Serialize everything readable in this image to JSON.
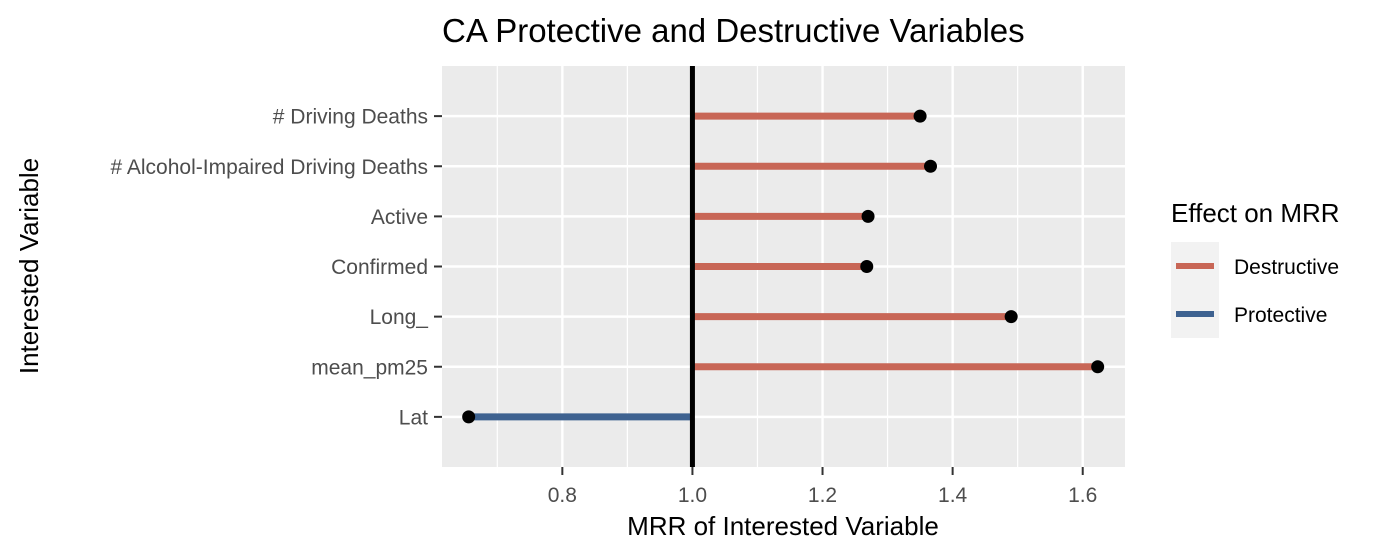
{
  "chart_data": {
    "type": "lollipop",
    "title": "CA Protective and Destructive Variables",
    "xlabel": "MRR of Interested Variable",
    "ylabel": "Interested Variable",
    "xlim": [
      0.615,
      1.665
    ],
    "x_ticks": [
      "0.8",
      "1.0",
      "1.2",
      "1.4",
      "1.6"
    ],
    "x_tick_values": [
      0.8,
      1.0,
      1.2,
      1.4,
      1.6
    ],
    "reference_line": 1.0,
    "grid": true,
    "legend_position": "right",
    "categories": [
      "# Driving Deaths",
      "# Alcohol-Impaired Driving Deaths",
      "Active",
      "Confirmed",
      "Long_",
      "mean_pm25",
      "Lat"
    ],
    "values": [
      1.35,
      1.366,
      1.27,
      1.268,
      1.49,
      1.623,
      0.656
    ],
    "effects": [
      "Destructive",
      "Destructive",
      "Destructive",
      "Destructive",
      "Destructive",
      "Destructive",
      "Protective"
    ],
    "legend": {
      "title": "Effect on MRR",
      "entries": [
        {
          "name": "Destructive",
          "color": "#c86656"
        },
        {
          "name": "Protective",
          "color": "#3e6290"
        }
      ]
    },
    "colors": {
      "Destructive": "#c86656",
      "Protective": "#3e6290",
      "panel": "#ebebeb",
      "grid": "#ffffff",
      "point": "#000000"
    }
  }
}
